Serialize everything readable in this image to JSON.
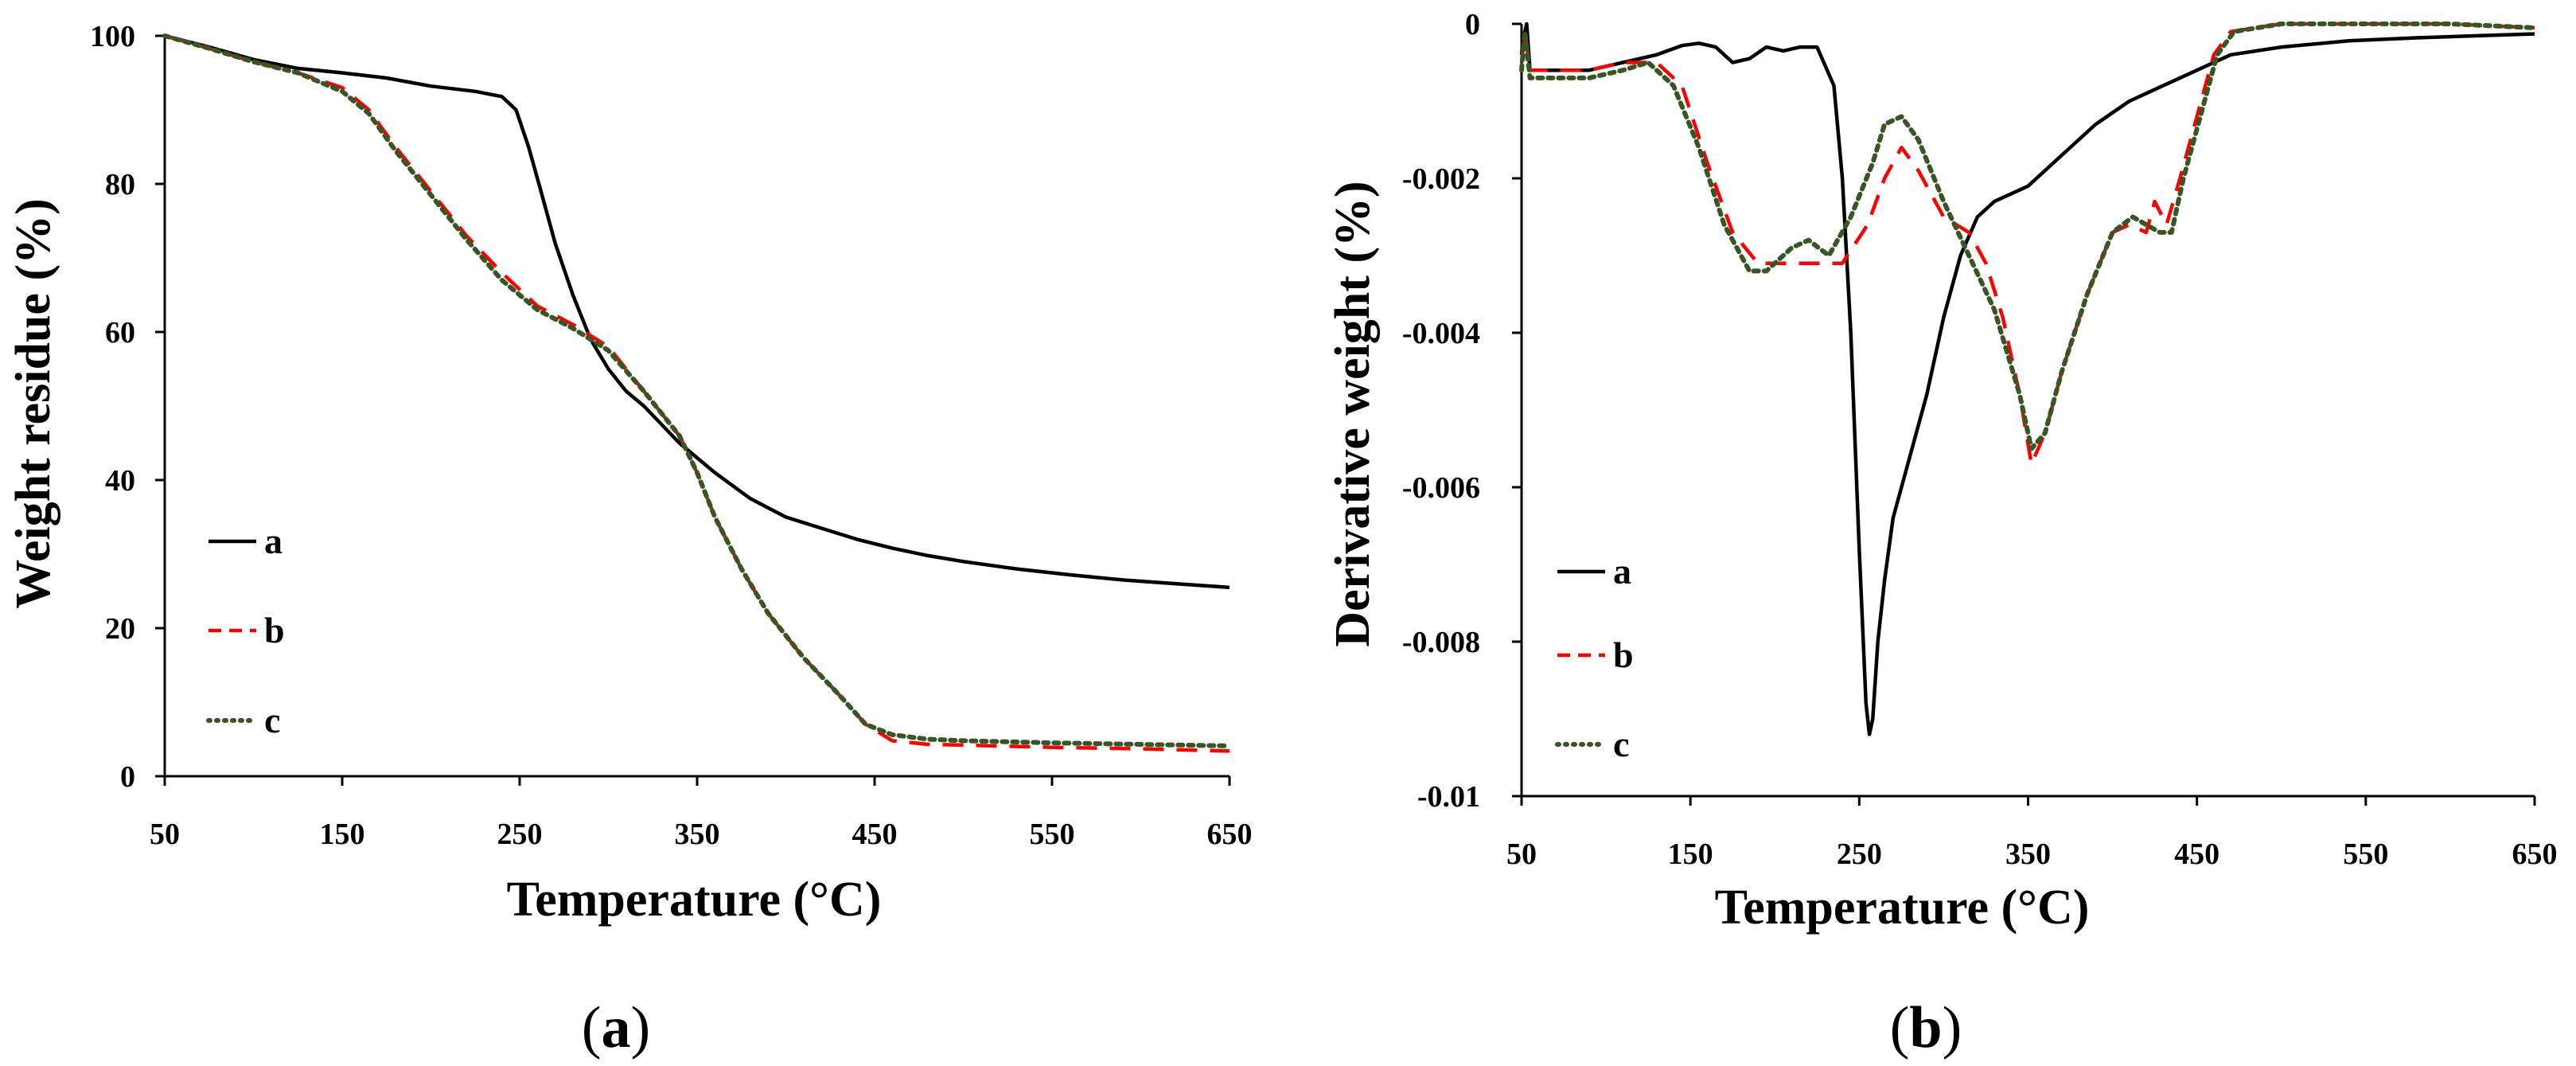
{
  "chart_data": [
    {
      "type": "line",
      "panel_label": "a",
      "title": "",
      "xlabel": "Temperature (°C)",
      "ylabel": "Weight residue (%)",
      "xlim": [
        50,
        650
      ],
      "ylim": [
        0,
        100
      ],
      "xticks": [
        50,
        150,
        250,
        350,
        450,
        550,
        650
      ],
      "yticks": [
        0,
        20,
        40,
        60,
        80,
        100
      ],
      "grid": false,
      "legend_position": "left-middle",
      "series": [
        {
          "name": "a",
          "color": "#000000",
          "style": "solid",
          "points": [
            [
              50,
              100
            ],
            [
              75,
              98.5
            ],
            [
              100,
              96.8
            ],
            [
              125,
              95.6
            ],
            [
              150,
              95
            ],
            [
              175,
              94.3
            ],
            [
              200,
              93.2
            ],
            [
              225,
              92.5
            ],
            [
              240,
              91.8
            ],
            [
              248,
              90
            ],
            [
              255,
              85
            ],
            [
              262,
              79
            ],
            [
              270,
              72
            ],
            [
              280,
              65
            ],
            [
              290,
              59
            ],
            [
              300,
              55
            ],
            [
              310,
              52
            ],
            [
              320,
              50
            ],
            [
              340,
              45
            ],
            [
              360,
              41
            ],
            [
              380,
              37.5
            ],
            [
              400,
              35
            ],
            [
              420,
              33.5
            ],
            [
              440,
              32
            ],
            [
              460,
              30.8
            ],
            [
              480,
              29.8
            ],
            [
              500,
              29
            ],
            [
              530,
              28
            ],
            [
              560,
              27.2
            ],
            [
              590,
              26.5
            ],
            [
              620,
              26
            ],
            [
              650,
              25.5
            ]
          ]
        },
        {
          "name": "b",
          "color": "#ff0000",
          "style": "dashed",
          "points": [
            [
              50,
              100
            ],
            [
              75,
              98.3
            ],
            [
              100,
              96.5
            ],
            [
              125,
              95
            ],
            [
              150,
              93
            ],
            [
              165,
              90
            ],
            [
              180,
              85
            ],
            [
              200,
              79
            ],
            [
              220,
              73
            ],
            [
              240,
              68
            ],
            [
              260,
              63.5
            ],
            [
              280,
              61
            ],
            [
              300,
              58
            ],
            [
              320,
              52
            ],
            [
              340,
              46
            ],
            [
              350,
              41
            ],
            [
              360,
              35
            ],
            [
              375,
              28
            ],
            [
              390,
              22
            ],
            [
              410,
              16
            ],
            [
              430,
              11
            ],
            [
              445,
              7
            ],
            [
              460,
              4.8
            ],
            [
              480,
              4.3
            ],
            [
              500,
              4.2
            ],
            [
              550,
              3.9
            ],
            [
              600,
              3.7
            ],
            [
              650,
              3.4
            ]
          ]
        },
        {
          "name": "c",
          "color": "#375623",
          "style": "dotted",
          "points": [
            [
              50,
              100
            ],
            [
              75,
              98.3
            ],
            [
              100,
              96.5
            ],
            [
              125,
              95
            ],
            [
              150,
              92.5
            ],
            [
              165,
              89.5
            ],
            [
              180,
              84.5
            ],
            [
              200,
              78.5
            ],
            [
              220,
              72.5
            ],
            [
              240,
              67
            ],
            [
              260,
              63
            ],
            [
              280,
              60.5
            ],
            [
              300,
              57.5
            ],
            [
              320,
              52
            ],
            [
              340,
              46
            ],
            [
              350,
              41
            ],
            [
              360,
              35
            ],
            [
              375,
              28
            ],
            [
              390,
              22
            ],
            [
              410,
              16
            ],
            [
              430,
              11
            ],
            [
              445,
              7
            ],
            [
              460,
              5.6
            ],
            [
              480,
              5
            ],
            [
              500,
              4.8
            ],
            [
              550,
              4.5
            ],
            [
              600,
              4.3
            ],
            [
              650,
              4.1
            ]
          ]
        }
      ]
    },
    {
      "type": "line",
      "panel_label": "b",
      "title": "",
      "xlabel": "Temperature (°C)",
      "ylabel": "Derivative weight (%)",
      "xlim": [
        50,
        650
      ],
      "ylim": [
        -0.01,
        0
      ],
      "xticks": [
        50,
        150,
        250,
        350,
        450,
        550,
        650
      ],
      "yticks": [
        0,
        -0.002,
        -0.004,
        -0.006,
        -0.008,
        -0.01
      ],
      "ytick_labels": [
        "0",
        "-0.002",
        "-0.004",
        "-0.006",
        "-0.008",
        "-0.01"
      ],
      "grid": false,
      "legend_position": "left-bottom",
      "series": [
        {
          "name": "a",
          "color": "#000000",
          "style": "solid",
          "points": [
            [
              50,
              -0.0004
            ],
            [
              51,
              -0.0002
            ],
            [
              53,
              0
            ],
            [
              55,
              -0.0006
            ],
            [
              70,
              -0.0006
            ],
            [
              90,
              -0.0006
            ],
            [
              110,
              -0.0005
            ],
            [
              130,
              -0.0004
            ],
            [
              145,
              -0.00028
            ],
            [
              155,
              -0.00025
            ],
            [
              165,
              -0.0003
            ],
            [
              175,
              -0.0005
            ],
            [
              185,
              -0.00045
            ],
            [
              195,
              -0.0003
            ],
            [
              205,
              -0.00035
            ],
            [
              215,
              -0.0003
            ],
            [
              225,
              -0.0003
            ],
            [
              235,
              -0.0008
            ],
            [
              240,
              -0.002
            ],
            [
              245,
              -0.004
            ],
            [
              250,
              -0.0068
            ],
            [
              254,
              -0.0088
            ],
            [
              256,
              -0.0092
            ],
            [
              258,
              -0.009
            ],
            [
              261,
              -0.008
            ],
            [
              265,
              -0.0072
            ],
            [
              270,
              -0.0064
            ],
            [
              280,
              -0.0056
            ],
            [
              290,
              -0.0048
            ],
            [
              300,
              -0.0038
            ],
            [
              310,
              -0.003
            ],
            [
              320,
              -0.0025
            ],
            [
              330,
              -0.0023
            ],
            [
              350,
              -0.0021
            ],
            [
              370,
              -0.0017
            ],
            [
              390,
              -0.0013
            ],
            [
              410,
              -0.001
            ],
            [
              430,
              -0.0008
            ],
            [
              450,
              -0.0006
            ],
            [
              470,
              -0.0004
            ],
            [
              500,
              -0.0003
            ],
            [
              540,
              -0.00022
            ],
            [
              580,
              -0.00018
            ],
            [
              620,
              -0.00015
            ],
            [
              650,
              -0.00013
            ]
          ]
        },
        {
          "name": "b",
          "color": "#ff0000",
          "style": "dashed",
          "points": [
            [
              50,
              -0.0005
            ],
            [
              52,
              -0.0001
            ],
            [
              55,
              -0.0006
            ],
            [
              70,
              -0.0006
            ],
            [
              90,
              -0.0006
            ],
            [
              110,
              -0.0005
            ],
            [
              130,
              -0.0005
            ],
            [
              145,
              -0.0008
            ],
            [
              160,
              -0.0018
            ],
            [
              175,
              -0.0027
            ],
            [
              190,
              -0.0031
            ],
            [
              200,
              -0.0031
            ],
            [
              215,
              -0.0031
            ],
            [
              230,
              -0.0031
            ],
            [
              240,
              -0.0031
            ],
            [
              255,
              -0.0026
            ],
            [
              265,
              -0.002
            ],
            [
              275,
              -0.0016
            ],
            [
              285,
              -0.0019
            ],
            [
              300,
              -0.0025
            ],
            [
              315,
              -0.0027
            ],
            [
              325,
              -0.0031
            ],
            [
              335,
              -0.0038
            ],
            [
              345,
              -0.0048
            ],
            [
              352,
              -0.0057
            ],
            [
              360,
              -0.0053
            ],
            [
              370,
              -0.0045
            ],
            [
              385,
              -0.0035
            ],
            [
              400,
              -0.0027
            ],
            [
              410,
              -0.0026
            ],
            [
              420,
              -0.0027
            ],
            [
              425,
              -0.0023
            ],
            [
              432,
              -0.0026
            ],
            [
              440,
              -0.002
            ],
            [
              450,
              -0.0012
            ],
            [
              460,
              -0.0004
            ],
            [
              470,
              -0.0001
            ],
            [
              500,
              0
            ],
            [
              550,
              0
            ],
            [
              600,
              0
            ],
            [
              650,
              -5e-05
            ]
          ]
        },
        {
          "name": "c",
          "color": "#375623",
          "style": "dotted",
          "points": [
            [
              50,
              -0.0006
            ],
            [
              52,
              -0.0001
            ],
            [
              55,
              -0.0007
            ],
            [
              70,
              -0.0007
            ],
            [
              90,
              -0.0007
            ],
            [
              110,
              -0.0006
            ],
            [
              125,
              -0.0005
            ],
            [
              140,
              -0.0008
            ],
            [
              155,
              -0.0016
            ],
            [
              170,
              -0.0026
            ],
            [
              185,
              -0.0032
            ],
            [
              195,
              -0.0032
            ],
            [
              210,
              -0.0029
            ],
            [
              220,
              -0.0028
            ],
            [
              232,
              -0.003
            ],
            [
              245,
              -0.0025
            ],
            [
              258,
              -0.0018
            ],
            [
              265,
              -0.0013
            ],
            [
              275,
              -0.0012
            ],
            [
              285,
              -0.0015
            ],
            [
              300,
              -0.0023
            ],
            [
              315,
              -0.003
            ],
            [
              330,
              -0.0037
            ],
            [
              345,
              -0.0048
            ],
            [
              352,
              -0.0055
            ],
            [
              360,
              -0.0053
            ],
            [
              370,
              -0.0045
            ],
            [
              385,
              -0.0035
            ],
            [
              400,
              -0.0027
            ],
            [
              412,
              -0.0025
            ],
            [
              420,
              -0.0026
            ],
            [
              428,
              -0.0027
            ],
            [
              435,
              -0.0027
            ],
            [
              442,
              -0.002
            ],
            [
              452,
              -0.0012
            ],
            [
              462,
              -0.0004
            ],
            [
              472,
              -0.0001
            ],
            [
              500,
              0
            ],
            [
              550,
              0
            ],
            [
              600,
              0
            ],
            [
              650,
              -5e-05
            ]
          ]
        }
      ]
    }
  ]
}
